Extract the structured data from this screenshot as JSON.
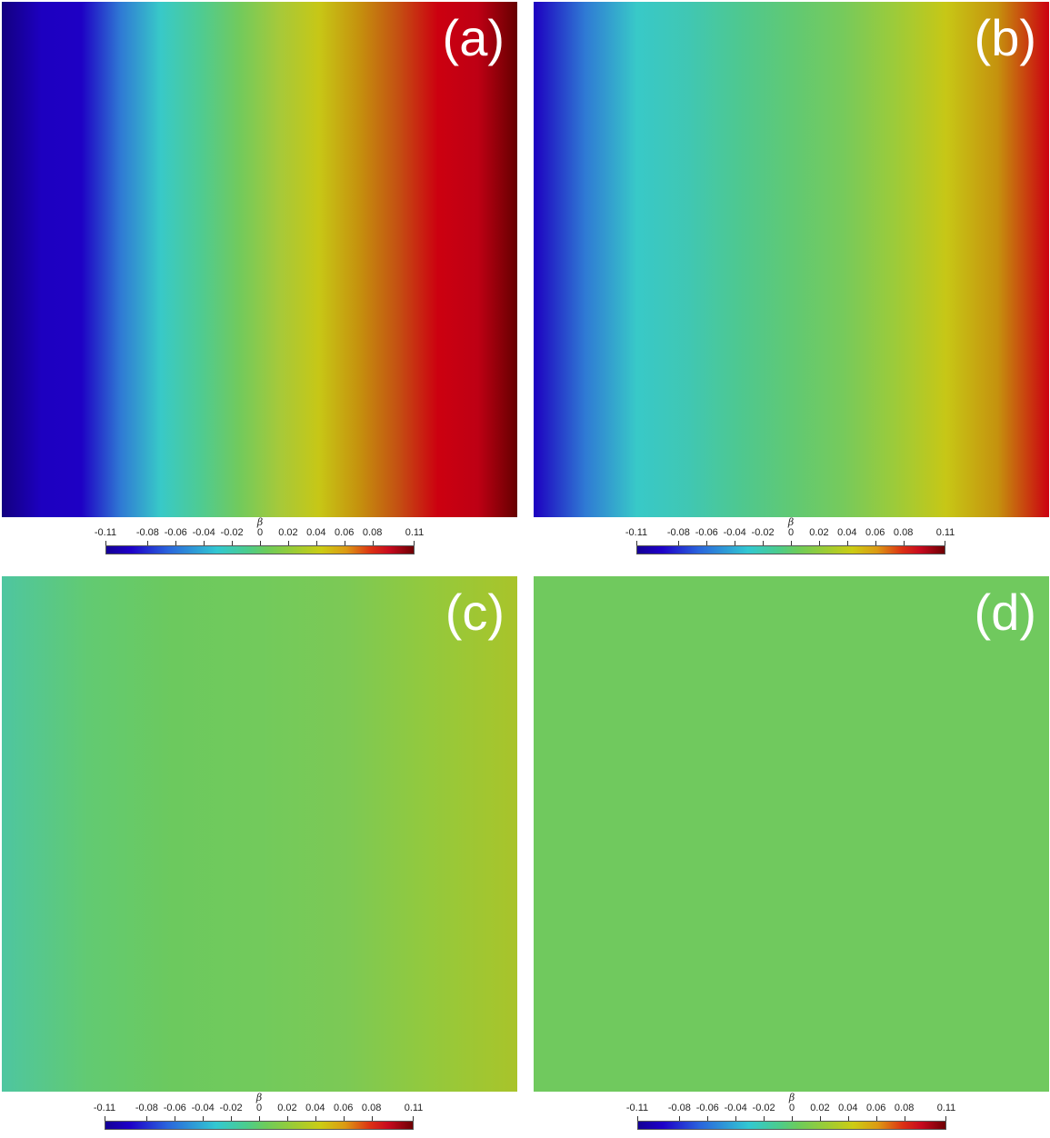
{
  "panels": [
    {
      "id": "a",
      "label": "(a)",
      "gradient": [
        "#130080",
        "#1d00c0",
        "#1e00c4",
        "#2f7ad4",
        "#38c9c8",
        "#4ecb93",
        "#72ca5c",
        "#a6c93a",
        "#c7c716",
        "#c5920e",
        "#c45012",
        "#cc0010",
        "#be0014",
        "#660000"
      ],
      "colorbar": {
        "symbol": "β",
        "ticks": [
          "-0.11",
          "-0.08",
          "-0.06",
          "-0.04",
          "-0.02",
          "0",
          "0.02",
          "0.04",
          "0.06",
          "0.08",
          "0.11"
        ]
      }
    },
    {
      "id": "b",
      "label": "(b)",
      "gradient": [
        "#1d00c0",
        "#2f7ad4",
        "#38c9c8",
        "#40c7b3",
        "#4ec890",
        "#60c974",
        "#76ca5c",
        "#9ccb3a",
        "#c7c716",
        "#c5920e",
        "#cc0010"
      ],
      "colorbar": {
        "symbol": "β",
        "ticks": [
          "-0.11",
          "-0.08",
          "-0.06",
          "-0.04",
          "-0.02",
          "0",
          "0.02",
          "0.04",
          "0.06",
          "0.08",
          "0.11"
        ]
      }
    },
    {
      "id": "c",
      "label": "(c)",
      "gradient": [
        "#4ec6a0",
        "#62ca72",
        "#6cc95e",
        "#72ca5c",
        "#7cc955",
        "#94c93c",
        "#a9c42a"
      ],
      "colorbar": {
        "symbol": "β",
        "ticks": [
          "-0.11",
          "-0.08",
          "-0.06",
          "-0.04",
          "-0.02",
          "0",
          "0.02",
          "0.04",
          "0.06",
          "0.08",
          "0.11"
        ]
      }
    },
    {
      "id": "d",
      "label": "(d)",
      "gradient": [
        "#70c95e",
        "#70c95e"
      ],
      "colorbar": {
        "symbol": "β",
        "ticks": [
          "-0.11",
          "-0.08",
          "-0.06",
          "-0.04",
          "-0.02",
          "0",
          "0.02",
          "0.04",
          "0.06",
          "0.08",
          "0.11"
        ]
      }
    }
  ]
}
